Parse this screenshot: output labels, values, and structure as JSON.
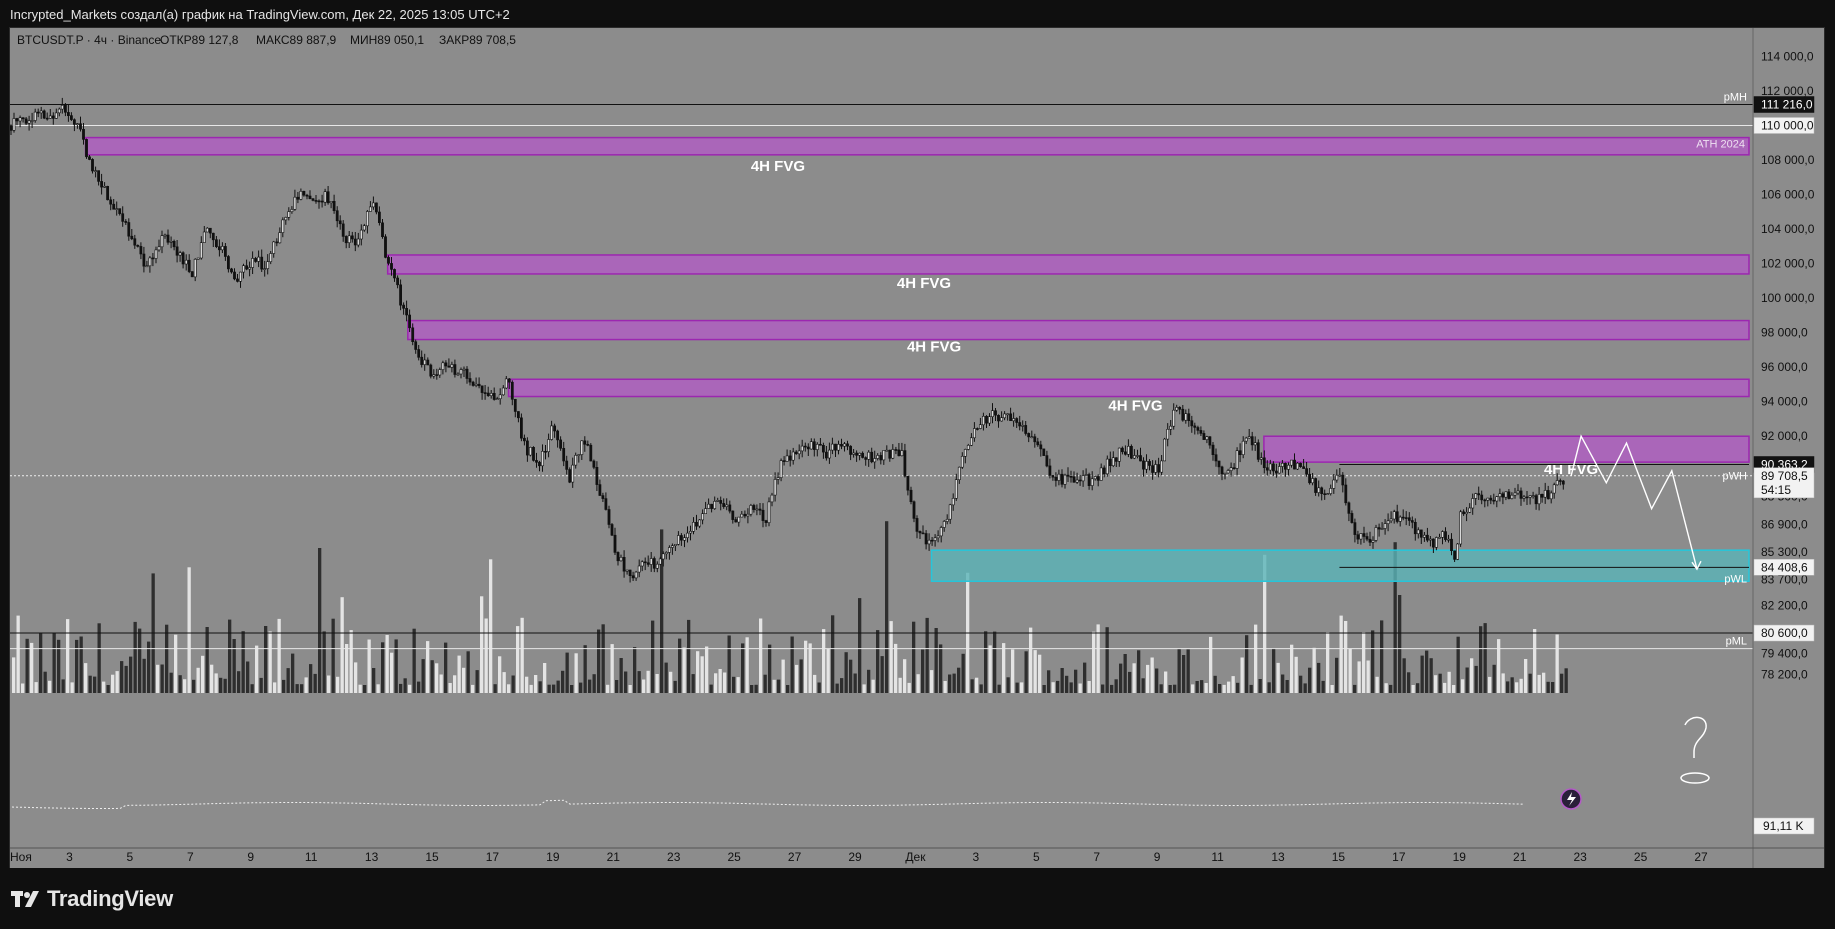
{
  "header": {
    "title": "Incrypted_Markets создал(а) график на TradingView.com, Дек 22, 2025 13:05 UTC+2"
  },
  "symbol_info": {
    "symbol": "BTCUSDT.P · 4ч · Binance",
    "open": "ОТКР89 127,8",
    "high": "МАКС89 887,9",
    "low": "МИН89 050,1",
    "close": "ЗАКР89 708,5"
  },
  "branding": {
    "logo_text": "TradingView"
  },
  "colors": {
    "chart_bg": "#8c8c8c",
    "fvg_fill": "#b45ac8",
    "fvg_border": "#9c27b0",
    "demand_fill": "#5ab4b8",
    "demand_border": "#26c6da",
    "candle": "#111111",
    "volume_dark": "#2e2e2e",
    "volume_light": "#e4e4e4"
  },
  "chart_data": {
    "type": "candlestick",
    "y_scale": "linear",
    "ylim": [
      77300,
      115300
    ],
    "x_range": [
      "2025-11-01",
      "2025-12-28"
    ],
    "grid": false,
    "y_ticks": [
      "114 000,0",
      "112 000,0",
      "108 000,0",
      "106 000,0",
      "104 000,0",
      "102 000,0",
      "100 000,0",
      "98 000,0",
      "96 000,0",
      "94 000,0",
      "92 000,0",
      "88 500,0",
      "86 900,0",
      "85 300,0",
      "83 700,0",
      "82 200,0",
      "79 400,0",
      "78 200,0"
    ],
    "x_ticks": [
      "Ноя",
      "3",
      "5",
      "7",
      "9",
      "11",
      "13",
      "15",
      "17",
      "19",
      "21",
      "23",
      "25",
      "27",
      "29",
      "Дек",
      "3",
      "5",
      "7",
      "9",
      "11",
      "13",
      "15",
      "17",
      "19",
      "21",
      "23",
      "25",
      "27"
    ],
    "price_badges": [
      {
        "value": 111216,
        "label": "111 216,0",
        "style": "dark"
      },
      {
        "value": 110000,
        "label": "110 000,0",
        "style": "light"
      },
      {
        "value": 90363.2,
        "label": "90 363,2",
        "style": "dark"
      },
      {
        "value": 89708.5,
        "label": "89 708,5",
        "countdown": "54:15",
        "style": "light"
      },
      {
        "value": 84408.6,
        "label": "84 408,6",
        "style": "light"
      },
      {
        "value": 80600,
        "label": "80 600,0",
        "style": "light"
      }
    ],
    "volume_badge": "91,11 K",
    "horizontal_lines": [
      {
        "value": 111216,
        "label": "pMH"
      },
      {
        "value": 110000,
        "label": ""
      },
      {
        "value": 80600,
        "label": ""
      },
      {
        "value": 79700,
        "label": "pML"
      }
    ],
    "fvg_zones": [
      {
        "top": 109300,
        "bottom": 108300,
        "start": "2025-11-03T12:00",
        "label": "4H FVG",
        "label_value": 107350,
        "label_date": "2025-11-26T10:00",
        "side_label": "ATH 2024"
      },
      {
        "top": 102500,
        "bottom": 101400,
        "start": "2025-11-13T12:00",
        "label": "4H FVG",
        "label_value": 100600,
        "label_date": "2025-12-01T06:00"
      },
      {
        "top": 98700,
        "bottom": 97600,
        "start": "2025-11-14T04:00",
        "label": "4H FVG",
        "label_value": 96900,
        "label_date": "2025-12-01T14:00"
      },
      {
        "top": 95300,
        "bottom": 94300,
        "start": "2025-11-17T12:00",
        "label": "4H FVG",
        "label_value": 93500,
        "label_date": "2025-12-08T06:00"
      },
      {
        "top": 92000,
        "bottom": 90500,
        "start": "2025-12-12T12:00",
        "label": "4H FVG",
        "label_value": 89800,
        "label_date": "2025-12-22T16:00"
      }
    ],
    "weekly_levels": [
      {
        "value": 90363,
        "start": "2025-12-15T00:00",
        "label": "pWH"
      },
      {
        "value": 84400,
        "start": "2025-12-15T00:00",
        "label": "pWL"
      }
    ],
    "demand_zone": {
      "top": 85400,
      "bottom": 83600,
      "start": "2025-12-01T12:00"
    },
    "projection": [
      {
        "t": "2025-12-22T16:00",
        "v": 89700
      },
      {
        "t": "2025-12-23T00:00",
        "v": 92000
      },
      {
        "t": "2025-12-23T20:00",
        "v": 89300
      },
      {
        "t": "2025-12-24T12:00",
        "v": 91600
      },
      {
        "t": "2025-12-25T08:00",
        "v": 87800
      },
      {
        "t": "2025-12-26T00:00",
        "v": 90000
      },
      {
        "t": "2025-12-26T20:00",
        "v": 84300
      }
    ],
    "price_path": [
      [
        "2025-11-01T00:00",
        110000
      ],
      [
        "2025-11-01T12:00",
        110300
      ],
      [
        "2025-11-02T00:00",
        110600
      ],
      [
        "2025-11-02T12:00",
        110300
      ],
      [
        "2025-11-02T16:00",
        111200
      ],
      [
        "2025-11-03T00:00",
        110500
      ],
      [
        "2025-11-03T08:00",
        109500
      ],
      [
        "2025-11-03T16:00",
        107500
      ],
      [
        "2025-11-04T00:00",
        106700
      ],
      [
        "2025-11-04T12:00",
        105200
      ],
      [
        "2025-11-05T00:00",
        103700
      ],
      [
        "2025-11-05T12:00",
        101900
      ],
      [
        "2025-11-06T00:00",
        103500
      ],
      [
        "2025-11-06T12:00",
        102900
      ],
      [
        "2025-11-07T00:00",
        101400
      ],
      [
        "2025-11-07T12:00",
        103900
      ],
      [
        "2025-11-08T00:00",
        103000
      ],
      [
        "2025-11-08T12:00",
        100900
      ],
      [
        "2025-11-09T00:00",
        102300
      ],
      [
        "2025-11-09T12:00",
        101800
      ],
      [
        "2025-11-10T00:00",
        104300
      ],
      [
        "2025-11-10T12:00",
        106000
      ],
      [
        "2025-11-11T00:00",
        105400
      ],
      [
        "2025-11-11T12:00",
        106000
      ],
      [
        "2025-11-12T00:00",
        103700
      ],
      [
        "2025-11-12T12:00",
        103100
      ],
      [
        "2025-11-13T00:00",
        105600
      ],
      [
        "2025-11-13T12:00",
        102200
      ],
      [
        "2025-11-14T00:00",
        99500
      ],
      [
        "2025-11-14T12:00",
        96500
      ],
      [
        "2025-11-15T00:00",
        95700
      ],
      [
        "2025-11-15T12:00",
        96100
      ],
      [
        "2025-11-16T00:00",
        95600
      ],
      [
        "2025-11-16T12:00",
        95000
      ],
      [
        "2025-11-17T00:00",
        94200
      ],
      [
        "2025-11-17T12:00",
        95200
      ],
      [
        "2025-11-18T00:00",
        91500
      ],
      [
        "2025-11-18T12:00",
        90500
      ],
      [
        "2025-11-19T00:00",
        92600
      ],
      [
        "2025-11-19T12:00",
        89500
      ],
      [
        "2025-11-20T00:00",
        91900
      ],
      [
        "2025-11-20T12:00",
        89000
      ],
      [
        "2025-11-21T00:00",
        85500
      ],
      [
        "2025-11-21T12:00",
        84000
      ],
      [
        "2025-11-22T00:00",
        84500
      ],
      [
        "2025-11-22T12:00",
        84700
      ],
      [
        "2025-11-23T00:00",
        85800
      ],
      [
        "2025-11-23T12:00",
        86800
      ],
      [
        "2025-11-24T00:00",
        87500
      ],
      [
        "2025-11-24T12:00",
        88400
      ],
      [
        "2025-11-25T00:00",
        87200
      ],
      [
        "2025-11-25T12:00",
        87700
      ],
      [
        "2025-11-26T00:00",
        87200
      ],
      [
        "2025-11-26T12:00",
        90300
      ],
      [
        "2025-11-27T00:00",
        91200
      ],
      [
        "2025-11-27T12:00",
        91500
      ],
      [
        "2025-11-28T00:00",
        91000
      ],
      [
        "2025-11-28T12:00",
        91800
      ],
      [
        "2025-11-29T00:00",
        90900
      ],
      [
        "2025-11-29T12:00",
        90700
      ],
      [
        "2025-11-30T00:00",
        90900
      ],
      [
        "2025-11-30T12:00",
        91100
      ],
      [
        "2025-12-01T00:00",
        86400
      ],
      [
        "2025-12-01T12:00",
        85800
      ],
      [
        "2025-12-02T00:00",
        87000
      ],
      [
        "2025-12-02T12:00",
        91000
      ],
      [
        "2025-12-03T00:00",
        92700
      ],
      [
        "2025-12-03T12:00",
        93300
      ],
      [
        "2025-12-04T00:00",
        93000
      ],
      [
        "2025-12-04T12:00",
        92300
      ],
      [
        "2025-12-05T00:00",
        91900
      ],
      [
        "2025-12-05T12:00",
        89500
      ],
      [
        "2025-12-06T00:00",
        89500
      ],
      [
        "2025-12-06T12:00",
        89400
      ],
      [
        "2025-12-07T00:00",
        89600
      ],
      [
        "2025-12-07T12:00",
        90800
      ],
      [
        "2025-12-08T00:00",
        91200
      ],
      [
        "2025-12-08T12:00",
        90300
      ],
      [
        "2025-12-09T00:00",
        90100
      ],
      [
        "2025-12-09T12:00",
        93500
      ],
      [
        "2025-12-10T00:00",
        92900
      ],
      [
        "2025-12-10T12:00",
        92200
      ],
      [
        "2025-12-11T00:00",
        90000
      ],
      [
        "2025-12-11T12:00",
        90400
      ],
      [
        "2025-12-12T00:00",
        92300
      ],
      [
        "2025-12-12T12:00",
        90100
      ],
      [
        "2025-12-13T00:00",
        90200
      ],
      [
        "2025-12-13T12:00",
        90300
      ],
      [
        "2025-12-14T00:00",
        89500
      ],
      [
        "2025-12-14T12:00",
        88300
      ],
      [
        "2025-12-15T00:00",
        89800
      ],
      [
        "2025-12-15T12:00",
        86400
      ],
      [
        "2025-12-16T00:00",
        86000
      ],
      [
        "2025-12-16T12:00",
        87000
      ],
      [
        "2025-12-17T00:00",
        87500
      ],
      [
        "2025-12-17T12:00",
        86500
      ],
      [
        "2025-12-18T00:00",
        85700
      ],
      [
        "2025-12-18T12:00",
        86300
      ],
      [
        "2025-12-18T20:00",
        84500
      ],
      [
        "2025-12-19T00:00",
        87500
      ],
      [
        "2025-12-19T12:00",
        88400
      ],
      [
        "2025-12-20T00:00",
        88300
      ],
      [
        "2025-12-20T12:00",
        88500
      ],
      [
        "2025-12-21T00:00",
        88500
      ],
      [
        "2025-12-21T12:00",
        88300
      ],
      [
        "2025-12-22T00:00",
        88700
      ],
      [
        "2025-12-22T12:00",
        89700
      ]
    ]
  }
}
